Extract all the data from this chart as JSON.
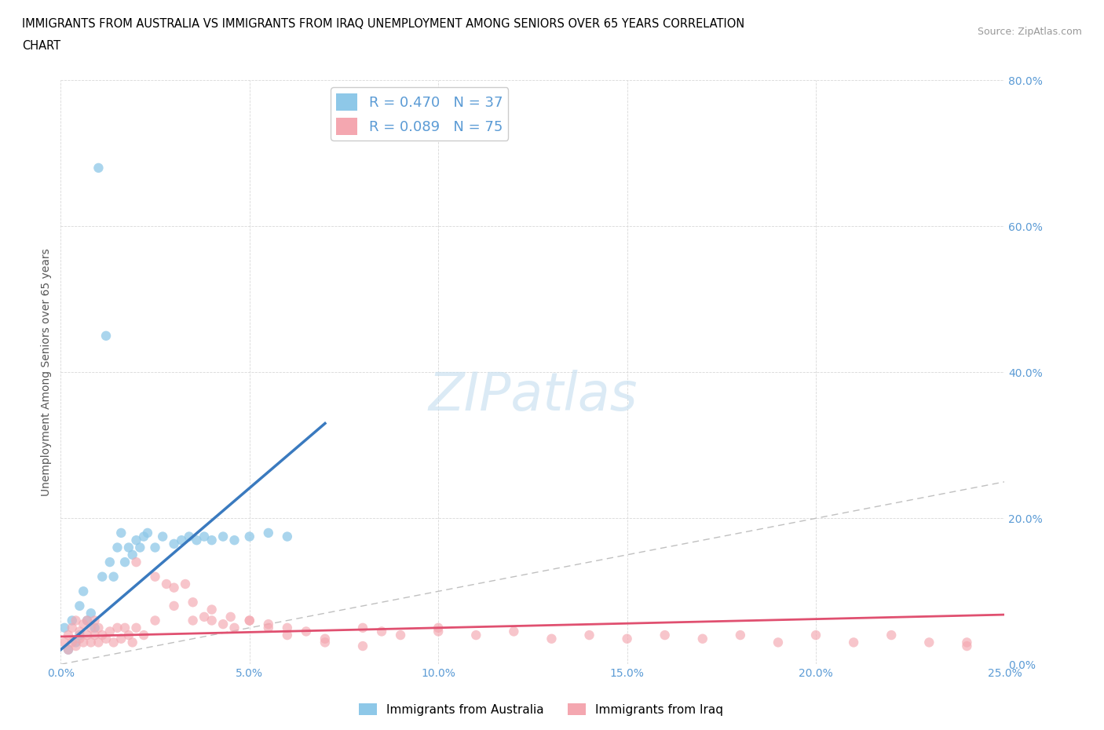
{
  "title_line1": "IMMIGRANTS FROM AUSTRALIA VS IMMIGRANTS FROM IRAQ UNEMPLOYMENT AMONG SENIORS OVER 65 YEARS CORRELATION",
  "title_line2": "CHART",
  "source": "Source: ZipAtlas.com",
  "xlabel_bottom": "Immigrants from Australia",
  "xlabel_bottom2": "Immigrants from Iraq",
  "ylabel": "Unemployment Among Seniors over 65 years",
  "xlim": [
    0.0,
    0.25
  ],
  "ylim": [
    0.0,
    0.8
  ],
  "xticks": [
    0.0,
    0.05,
    0.1,
    0.15,
    0.2,
    0.25
  ],
  "yticks": [
    0.0,
    0.2,
    0.4,
    0.6,
    0.8
  ],
  "xtick_labels": [
    "0.0%",
    "5.0%",
    "10.0%",
    "15.0%",
    "20.0%",
    "25.0%"
  ],
  "ytick_labels": [
    "0.0%",
    "20.0%",
    "40.0%",
    "60.0%",
    "80.0%"
  ],
  "R_australia": 0.47,
  "N_australia": 37,
  "R_iraq": 0.089,
  "N_iraq": 75,
  "color_australia": "#8ec8e8",
  "color_iraq": "#f4a7b0",
  "color_australia_line": "#3a7abf",
  "color_iraq_line": "#e05070",
  "diagonal_color": "#c0c0c0",
  "australia_x": [
    0.001,
    0.002,
    0.003,
    0.004,
    0.005,
    0.005,
    0.006,
    0.007,
    0.008,
    0.009,
    0.01,
    0.011,
    0.012,
    0.013,
    0.014,
    0.015,
    0.016,
    0.017,
    0.018,
    0.019,
    0.02,
    0.021,
    0.022,
    0.023,
    0.025,
    0.027,
    0.03,
    0.032,
    0.034,
    0.036,
    0.038,
    0.04,
    0.043,
    0.046,
    0.05,
    0.055,
    0.06
  ],
  "australia_y": [
    0.05,
    0.02,
    0.06,
    0.03,
    0.08,
    0.04,
    0.1,
    0.06,
    0.07,
    0.05,
    0.68,
    0.12,
    0.45,
    0.14,
    0.12,
    0.16,
    0.18,
    0.14,
    0.16,
    0.15,
    0.17,
    0.16,
    0.175,
    0.18,
    0.16,
    0.175,
    0.165,
    0.17,
    0.175,
    0.17,
    0.175,
    0.17,
    0.175,
    0.17,
    0.175,
    0.18,
    0.175
  ],
  "australia_line_x": [
    0.0,
    0.07
  ],
  "australia_line_y": [
    0.02,
    0.33
  ],
  "iraq_x": [
    0.001,
    0.002,
    0.002,
    0.003,
    0.003,
    0.004,
    0.004,
    0.005,
    0.005,
    0.006,
    0.006,
    0.007,
    0.007,
    0.008,
    0.008,
    0.009,
    0.009,
    0.01,
    0.01,
    0.011,
    0.012,
    0.013,
    0.014,
    0.015,
    0.016,
    0.017,
    0.018,
    0.019,
    0.02,
    0.022,
    0.025,
    0.028,
    0.03,
    0.033,
    0.035,
    0.038,
    0.04,
    0.043,
    0.046,
    0.05,
    0.055,
    0.06,
    0.065,
    0.07,
    0.08,
    0.085,
    0.09,
    0.1,
    0.11,
    0.12,
    0.13,
    0.14,
    0.15,
    0.16,
    0.17,
    0.18,
    0.19,
    0.2,
    0.21,
    0.22,
    0.23,
    0.24,
    0.02,
    0.025,
    0.03,
    0.035,
    0.04,
    0.045,
    0.05,
    0.055,
    0.06,
    0.07,
    0.08,
    0.1,
    0.24
  ],
  "iraq_y": [
    0.03,
    0.02,
    0.04,
    0.03,
    0.05,
    0.025,
    0.06,
    0.035,
    0.045,
    0.03,
    0.055,
    0.04,
    0.06,
    0.03,
    0.05,
    0.04,
    0.06,
    0.03,
    0.05,
    0.04,
    0.035,
    0.045,
    0.03,
    0.05,
    0.035,
    0.05,
    0.04,
    0.03,
    0.05,
    0.04,
    0.06,
    0.11,
    0.08,
    0.11,
    0.06,
    0.065,
    0.06,
    0.055,
    0.05,
    0.06,
    0.055,
    0.05,
    0.045,
    0.035,
    0.05,
    0.045,
    0.04,
    0.045,
    0.04,
    0.045,
    0.035,
    0.04,
    0.035,
    0.04,
    0.035,
    0.04,
    0.03,
    0.04,
    0.03,
    0.04,
    0.03,
    0.025,
    0.14,
    0.12,
    0.105,
    0.085,
    0.075,
    0.065,
    0.06,
    0.05,
    0.04,
    0.03,
    0.025,
    0.05,
    0.03
  ],
  "iraq_line_x": [
    0.0,
    0.25
  ],
  "iraq_line_y": [
    0.038,
    0.068
  ]
}
